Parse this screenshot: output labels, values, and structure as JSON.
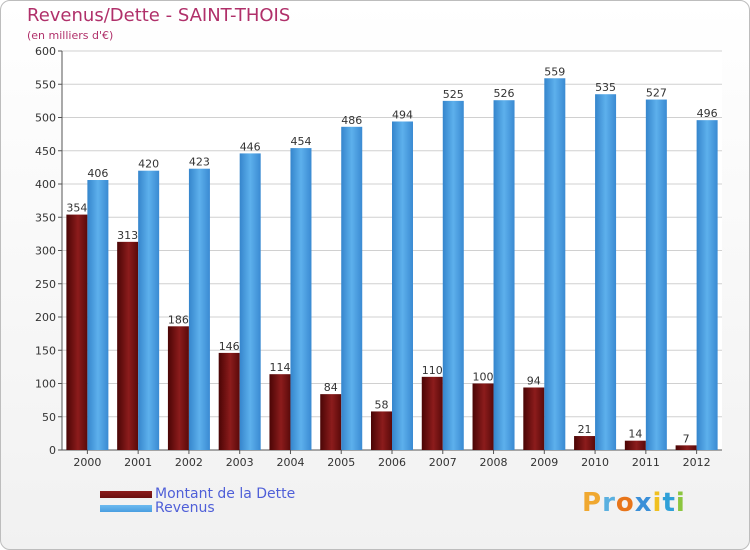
{
  "header": {
    "title": "Revenus/Dette - SAINT-THOIS",
    "subtitle": "(en milliers d'€)"
  },
  "legend": {
    "dette_label": "Montant de la Dette",
    "revenus_label": "Revenus"
  },
  "logo": {
    "text": "Proxiti",
    "letters": [
      "P",
      "r",
      "o",
      "x",
      "i",
      "t",
      "i"
    ],
    "colors": [
      "#f0a830",
      "#5ab0e0",
      "#e8751a",
      "#3a8fd8",
      "#f0c020",
      "#2fa0d8",
      "#8cc63f"
    ]
  },
  "colors": {
    "dette": "#6b0f0f",
    "revenus": "#4a9ee0",
    "title": "#b0306a",
    "legend_text": "#4f5fd8"
  },
  "chart_data": {
    "type": "bar",
    "title": "Revenus/Dette - SAINT-THOIS",
    "subtitle": "(en milliers d'€)",
    "categories": [
      "2000",
      "2001",
      "2002",
      "2003",
      "2004",
      "2005",
      "2006",
      "2007",
      "2008",
      "2009",
      "2010",
      "2011",
      "2012"
    ],
    "series": [
      {
        "name": "Montant de la Dette",
        "values": [
          354,
          313,
          186,
          146,
          114,
          84,
          58,
          110,
          100,
          94,
          21,
          14,
          7
        ]
      },
      {
        "name": "Revenus",
        "values": [
          406,
          420,
          423,
          446,
          454,
          486,
          494,
          525,
          526,
          559,
          535,
          527,
          496
        ]
      }
    ],
    "ylim": [
      0,
      600
    ],
    "yticks": [
      0,
      50,
      100,
      150,
      200,
      250,
      300,
      350,
      400,
      450,
      500,
      550,
      600
    ],
    "grid": true,
    "legend_position": "bottom-left"
  }
}
